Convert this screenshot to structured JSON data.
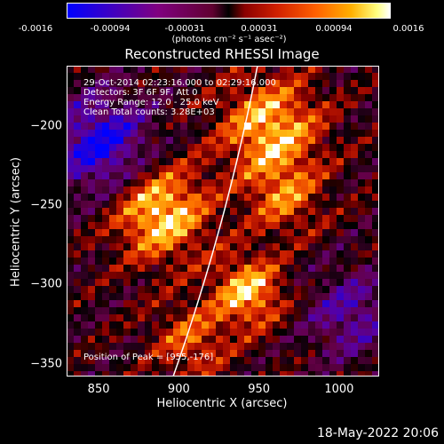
{
  "colorbar": {
    "tick_labels": [
      "-0.0016",
      "-0.00094",
      "-0.00031",
      "0.00031",
      "0.00094",
      "0.0016"
    ],
    "units": "(photons cm⁻² s⁻¹ asec⁻²)"
  },
  "title": "Reconstructed RHESSI Image",
  "info": {
    "line1": "29-Oct-2014 02:23:16.000 to 02:29:16.000",
    "line2": "Detectors: 3F 6F 9F, Att 0",
    "line3": "Energy Range: 12.0 - 25.0 keV",
    "line4": "Clean    Total counts: 3.28E+03"
  },
  "peak_text": "Position of Peak = [955,-176]",
  "timestamp": "18-May-2022 20:06",
  "chart_data": {
    "type": "heatmap",
    "title": "Reconstructed RHESSI Image",
    "xlabel": "Heliocentric X (arcsec)",
    "ylabel": "Heliocentric Y (arcsec)",
    "x_ticks": [
      850,
      900,
      950,
      1000
    ],
    "y_ticks": [
      -200,
      -250,
      -300,
      -350
    ],
    "xlim": [
      830,
      1025
    ],
    "ylim": [
      -358,
      -162
    ],
    "colorbar_range": [
      -0.0016,
      0.0016
    ],
    "peak": [
      955,
      -176
    ],
    "colormap_colors": [
      "#0000ff",
      "#800080",
      "#000000",
      "#d02000",
      "#ff8000",
      "#ffff80",
      "#ffffff"
    ]
  }
}
